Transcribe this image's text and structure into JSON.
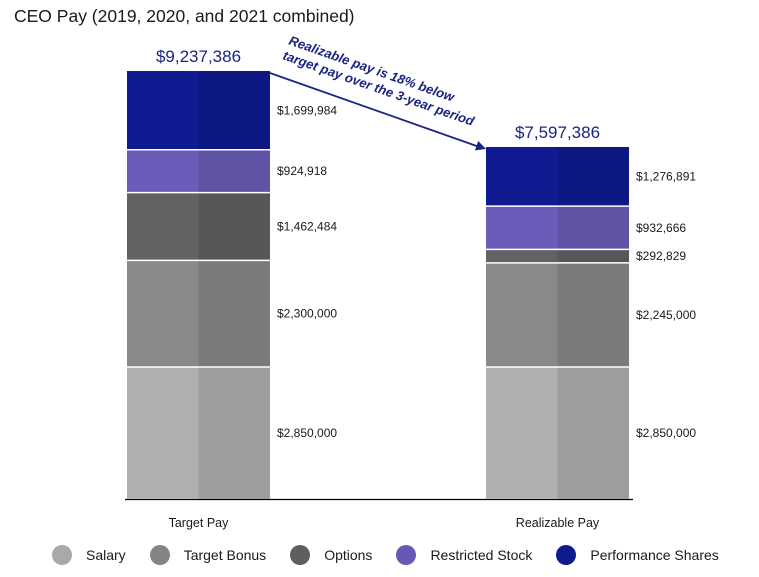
{
  "chart_data": {
    "type": "stacked-bar",
    "title": "CEO Pay (2019, 2020, and 2021 combined)",
    "categories": [
      "Target Pay",
      "Realizable Pay"
    ],
    "totals": [
      "$9,237,386",
      "$7,597,386"
    ],
    "total_values": [
      9237386,
      7597386
    ],
    "series": [
      {
        "name": "Salary",
        "color": "#a9a9ab",
        "values": [
          2850000,
          2850000
        ],
        "labels": [
          "$2,850,000",
          "$2,850,000"
        ]
      },
      {
        "name": "Target Bonus",
        "color": "#848487",
        "values": [
          2300000,
          2245000
        ],
        "labels": [
          "$2,300,000",
          "$2,245,000"
        ]
      },
      {
        "name": "Options",
        "color": "#5e5e60",
        "values": [
          1462484,
          292829
        ],
        "labels": [
          "$1,462,484",
          "$292,829"
        ]
      },
      {
        "name": "Restricted Stock",
        "color": "#6659b3",
        "values": [
          924918,
          932666
        ],
        "labels": [
          "$924,918",
          "$932,666"
        ]
      },
      {
        "name": "Performance Shares",
        "color": "#0f1a8c",
        "values": [
          1699984,
          1276891
        ],
        "labels": [
          "$1,699,984",
          "$1,276,891"
        ]
      }
    ],
    "annotation": {
      "line1": "Realizable pay is 18% below",
      "line2": "target pay over the 3-year period"
    },
    "total_color": "#1a2482",
    "ylim": [
      0,
      9237386
    ]
  }
}
